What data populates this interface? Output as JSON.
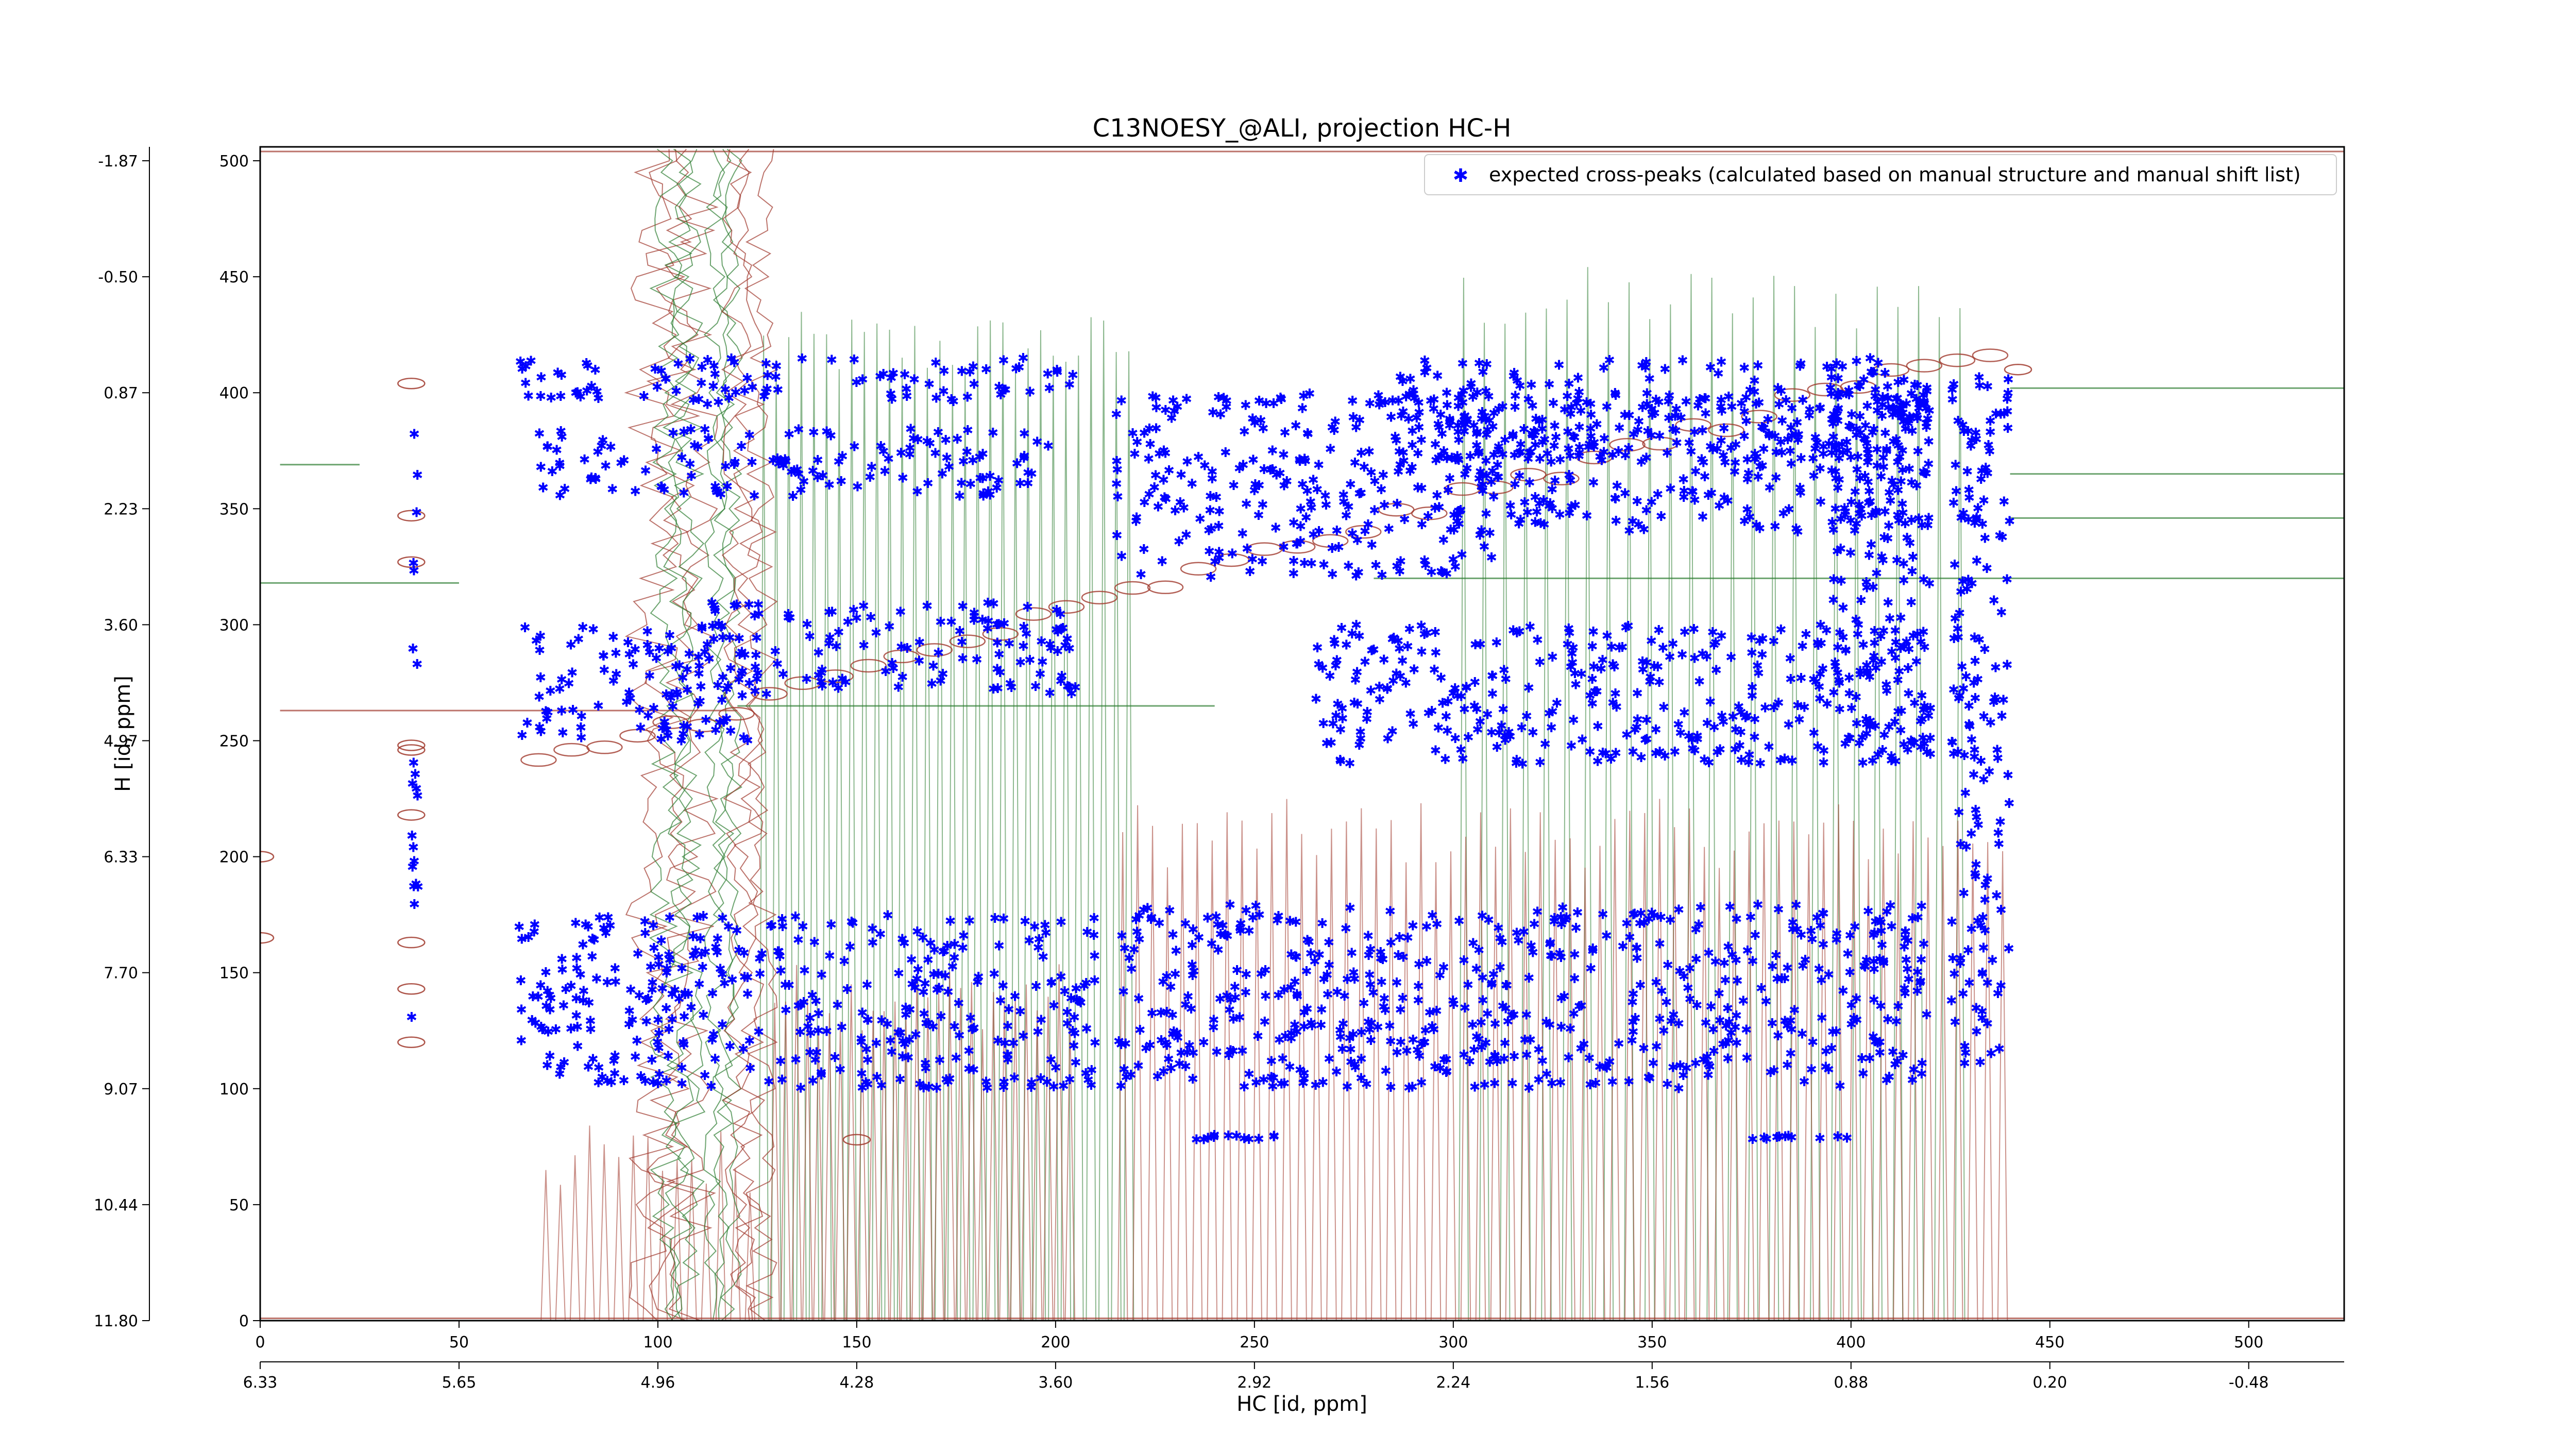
{
  "chart_data": {
    "type": "scatter",
    "title": "C13NOESY_@ALI, projection HC-H",
    "xlabel": "HC [id, ppm]",
    "ylabel": "H [id, ppm]",
    "xlim": [
      0,
      524
    ],
    "ylim": [
      0,
      506
    ],
    "x_ticks": [
      0,
      50,
      100,
      150,
      200,
      250,
      300,
      350,
      400,
      450,
      500
    ],
    "y_ticks": [
      0,
      50,
      100,
      150,
      200,
      250,
      300,
      350,
      400,
      450,
      500
    ],
    "x_ppm_ticks": [
      "6.33",
      "5.65",
      "4.96",
      "4.28",
      "3.60",
      "2.92",
      "2.24",
      "1.56",
      "0.88",
      "0.20",
      "-0.48"
    ],
    "y_ppm_ticks": [
      "11.80",
      "10.44",
      "9.07",
      "7.70",
      "6.33",
      "4.97",
      "3.60",
      "2.23",
      "0.87",
      "-0.50",
      "-1.87"
    ],
    "legend": {
      "placement": "top-right",
      "entries": [
        "expected cross-peaks (calculated based on manual structure and manual shift list)"
      ]
    },
    "grid": false,
    "colors": {
      "peaks": "#0000ff",
      "positive_contour": "#a0382c",
      "negative_contour": "#2e7d32"
    },
    "series": [
      {
        "name": "expected cross-peaks (calculated based on manual structure and manual shift list)",
        "approximate_regions": [
          {
            "x": [
              65,
              205
            ],
            "y": [
              395,
              415
            ]
          },
          {
            "x": [
              70,
              200
            ],
            "y": [
              355,
              385
            ]
          },
          {
            "x": [
              65,
              125
            ],
            "y": [
              250,
              300
            ]
          },
          {
            "x": [
              110,
              205
            ],
            "y": [
              270,
              310
            ]
          },
          {
            "x": [
              215,
              310
            ],
            "y": [
              320,
              400
            ]
          },
          {
            "x": [
              285,
              420
            ],
            "y": [
              370,
              415
            ]
          },
          {
            "x": [
              295,
              420
            ],
            "y": [
              340,
              400
            ]
          },
          {
            "x": [
              265,
              420
            ],
            "y": [
              240,
              300
            ]
          },
          {
            "x": [
              395,
              420
            ],
            "y": [
              240,
              415
            ]
          },
          {
            "x": [
              65,
              210
            ],
            "y": [
              100,
              175
            ]
          },
          {
            "x": [
              215,
              420
            ],
            "y": [
              100,
              180
            ]
          },
          {
            "x": [
              235,
              260
            ],
            "y": [
              78,
              80
            ]
          },
          {
            "x": [
              375,
              400
            ],
            "y": [
              78,
              80
            ]
          },
          {
            "x": [
              38,
              40
            ],
            "y": [
              120,
              410
            ]
          },
          {
            "x": [
              425,
              440
            ],
            "y": [
              110,
              410
            ]
          }
        ]
      }
    ]
  }
}
